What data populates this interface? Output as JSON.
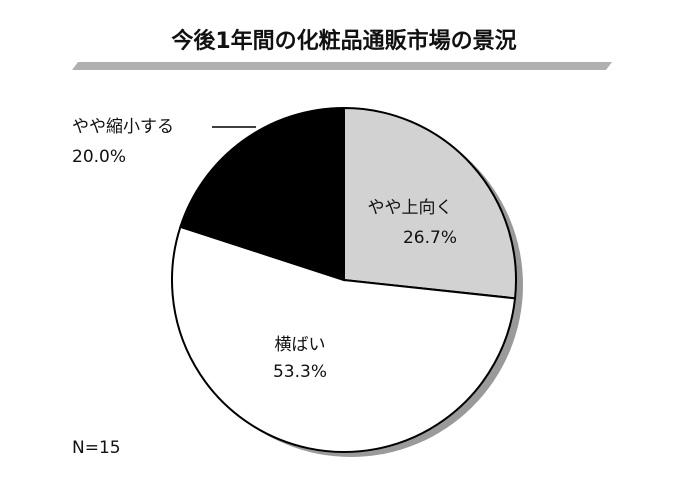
{
  "chart_data": {
    "type": "pie",
    "title": "今後1年間の化粧品通販市場の景況",
    "categories": [
      "やや上向く",
      "横ばい",
      "やや縮小する"
    ],
    "values": [
      26.7,
      53.3,
      20.0
    ],
    "value_labels": [
      "26.7%",
      "53.3%",
      "20.0%"
    ],
    "colors": [
      "#d2d2d2",
      "#ffffff",
      "#000000"
    ],
    "note": "N=15"
  }
}
